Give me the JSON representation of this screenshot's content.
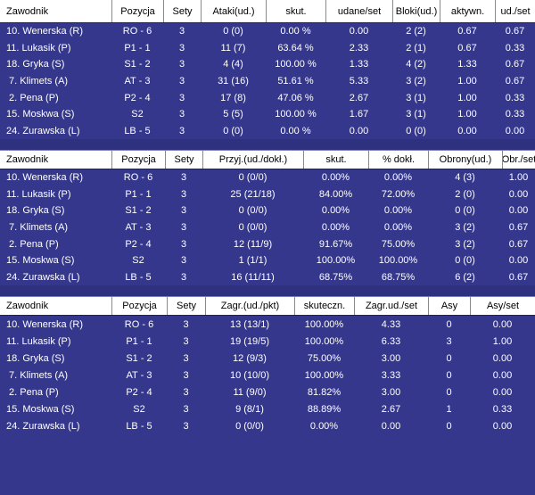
{
  "colors": {
    "body_bg": "#34378b",
    "gap_bg": "#2e3080",
    "header_bg": "#ffffff",
    "header_text": "#000000",
    "row_text": "#ffffff"
  },
  "tables": [
    {
      "columns": [
        "Zawodnik",
        "Pozycja",
        "Sety",
        "Ataki(ud.)",
        "skut.",
        "udane/set",
        "Bloki(ud.)",
        "aktywn.",
        "ud./set"
      ],
      "rows": [
        [
          "10. Wenerska (R)",
          "RO - 6",
          "3",
          "0 (0)",
          "0.00 %",
          "0.00",
          "2 (2)",
          "0.67",
          "0.67"
        ],
        [
          "11. Lukasik (P)",
          "P1 - 1",
          "3",
          "11 (7)",
          "63.64 %",
          "2.33",
          "2 (1)",
          "0.67",
          "0.33"
        ],
        [
          "18. Gryka (S)",
          "S1 - 2",
          "3",
          "4 (4)",
          "100.00 %",
          "1.33",
          "4 (2)",
          "1.33",
          "0.67"
        ],
        [
          " 7. Klimets (A)",
          "AT - 3",
          "3",
          "31 (16)",
          "51.61 %",
          "5.33",
          "3 (2)",
          "1.00",
          "0.67"
        ],
        [
          " 2. Pena (P)",
          "P2 - 4",
          "3",
          "17 (8)",
          "47.06 %",
          "2.67",
          "3 (1)",
          "1.00",
          "0.33"
        ],
        [
          "15. Moskwa (S)",
          "S2",
          "3",
          "5 (5)",
          "100.00 %",
          "1.67",
          "3 (1)",
          "1.00",
          "0.33"
        ],
        [
          "24. Zurawska (L)",
          "LB - 5",
          "3",
          "0 (0)",
          "0.00 %",
          "0.00",
          "0 (0)",
          "0.00",
          "0.00"
        ]
      ]
    },
    {
      "columns": [
        "Zawodnik",
        "Pozycja",
        "Sety",
        "Przyj.(ud./dokł.)",
        "skut.",
        "% dokł.",
        "Obrony(ud.)",
        "Obr./set"
      ],
      "rows": [
        [
          "10. Wenerska (R)",
          "RO - 6",
          "3",
          "0 (0/0)",
          "0.00%",
          "0.00%",
          "4 (3)",
          "1.00"
        ],
        [
          "11. Lukasik (P)",
          "P1 - 1",
          "3",
          "25 (21/18)",
          "84.00%",
          "72.00%",
          "2 (0)",
          "0.00"
        ],
        [
          "18. Gryka (S)",
          "S1 - 2",
          "3",
          "0 (0/0)",
          "0.00%",
          "0.00%",
          "0 (0)",
          "0.00"
        ],
        [
          " 7. Klimets (A)",
          "AT - 3",
          "3",
          "0 (0/0)",
          "0.00%",
          "0.00%",
          "3 (2)",
          "0.67"
        ],
        [
          " 2. Pena (P)",
          "P2 - 4",
          "3",
          "12 (11/9)",
          "91.67%",
          "75.00%",
          "3 (2)",
          "0.67"
        ],
        [
          "15. Moskwa (S)",
          "S2",
          "3",
          "1 (1/1)",
          "100.00%",
          "100.00%",
          "0 (0)",
          "0.00"
        ],
        [
          "24. Zurawska (L)",
          "LB - 5",
          "3",
          "16 (11/11)",
          "68.75%",
          "68.75%",
          "6 (2)",
          "0.67"
        ]
      ]
    },
    {
      "columns": [
        "Zawodnik",
        "Pozycja",
        "Sety",
        "Zagr.(ud./pkt)",
        "skuteczn.",
        "Zagr.ud./set",
        "Asy",
        "Asy/set"
      ],
      "rows": [
        [
          "10. Wenerska (R)",
          "RO - 6",
          "3",
          "13 (13/1)",
          "100.00%",
          "4.33",
          "0",
          "0.00"
        ],
        [
          "11. Lukasik (P)",
          "P1 - 1",
          "3",
          "19 (19/5)",
          "100.00%",
          "6.33",
          "3",
          "1.00"
        ],
        [
          "18. Gryka (S)",
          "S1 - 2",
          "3",
          "12 (9/3)",
          "75.00%",
          "3.00",
          "0",
          "0.00"
        ],
        [
          " 7. Klimets (A)",
          "AT - 3",
          "3",
          "10 (10/0)",
          "100.00%",
          "3.33",
          "0",
          "0.00"
        ],
        [
          " 2. Pena (P)",
          "P2 - 4",
          "3",
          "11 (9/0)",
          "81.82%",
          "3.00",
          "0",
          "0.00"
        ],
        [
          "15. Moskwa (S)",
          "S2",
          "3",
          "9 (8/1)",
          "88.89%",
          "2.67",
          "1",
          "0.33"
        ],
        [
          "24. Zurawska (L)",
          "LB - 5",
          "3",
          "0 (0/0)",
          "0.00%",
          "0.00",
          "0",
          "0.00"
        ]
      ]
    }
  ]
}
